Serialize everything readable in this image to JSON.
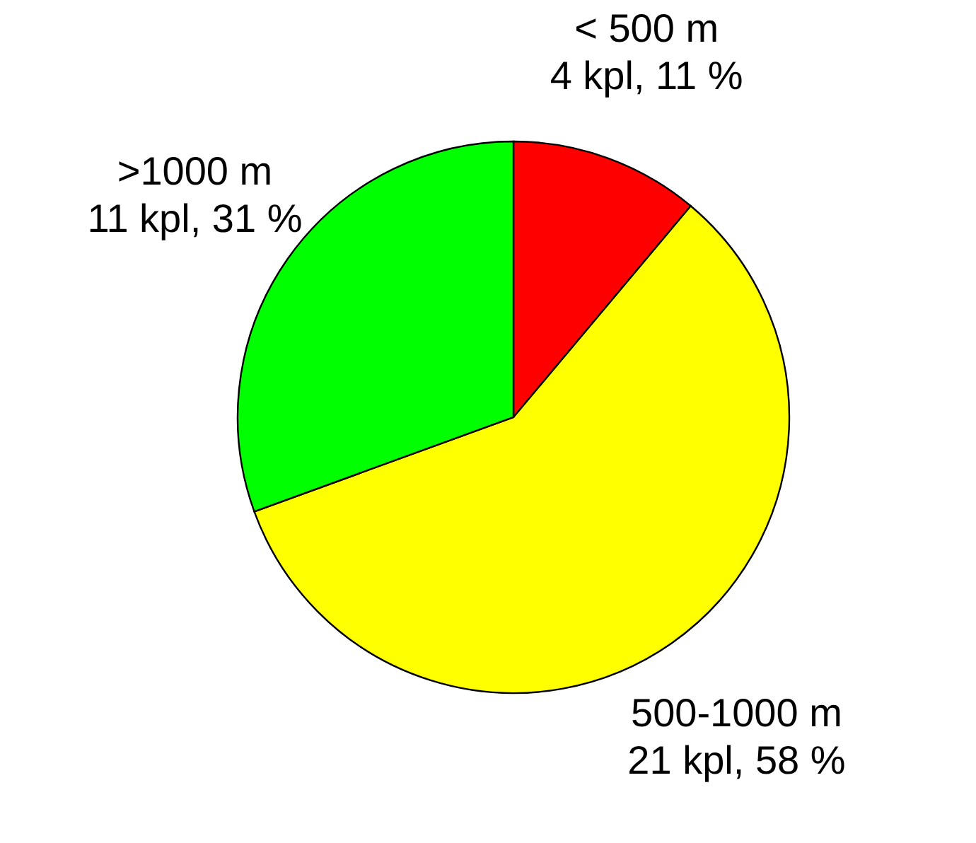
{
  "chart_data": {
    "type": "pie",
    "categories": [
      "< 500 m",
      "500-1000 m",
      ">1000 m"
    ],
    "values": [
      4,
      21,
      11
    ],
    "value_labels": [
      "4 kpl, 11 %",
      "21 kpl, 58 %",
      "11 kpl, 31 %"
    ],
    "colors": [
      "#ff0000",
      "#ffff00",
      "#00ff00"
    ],
    "legend": false
  }
}
